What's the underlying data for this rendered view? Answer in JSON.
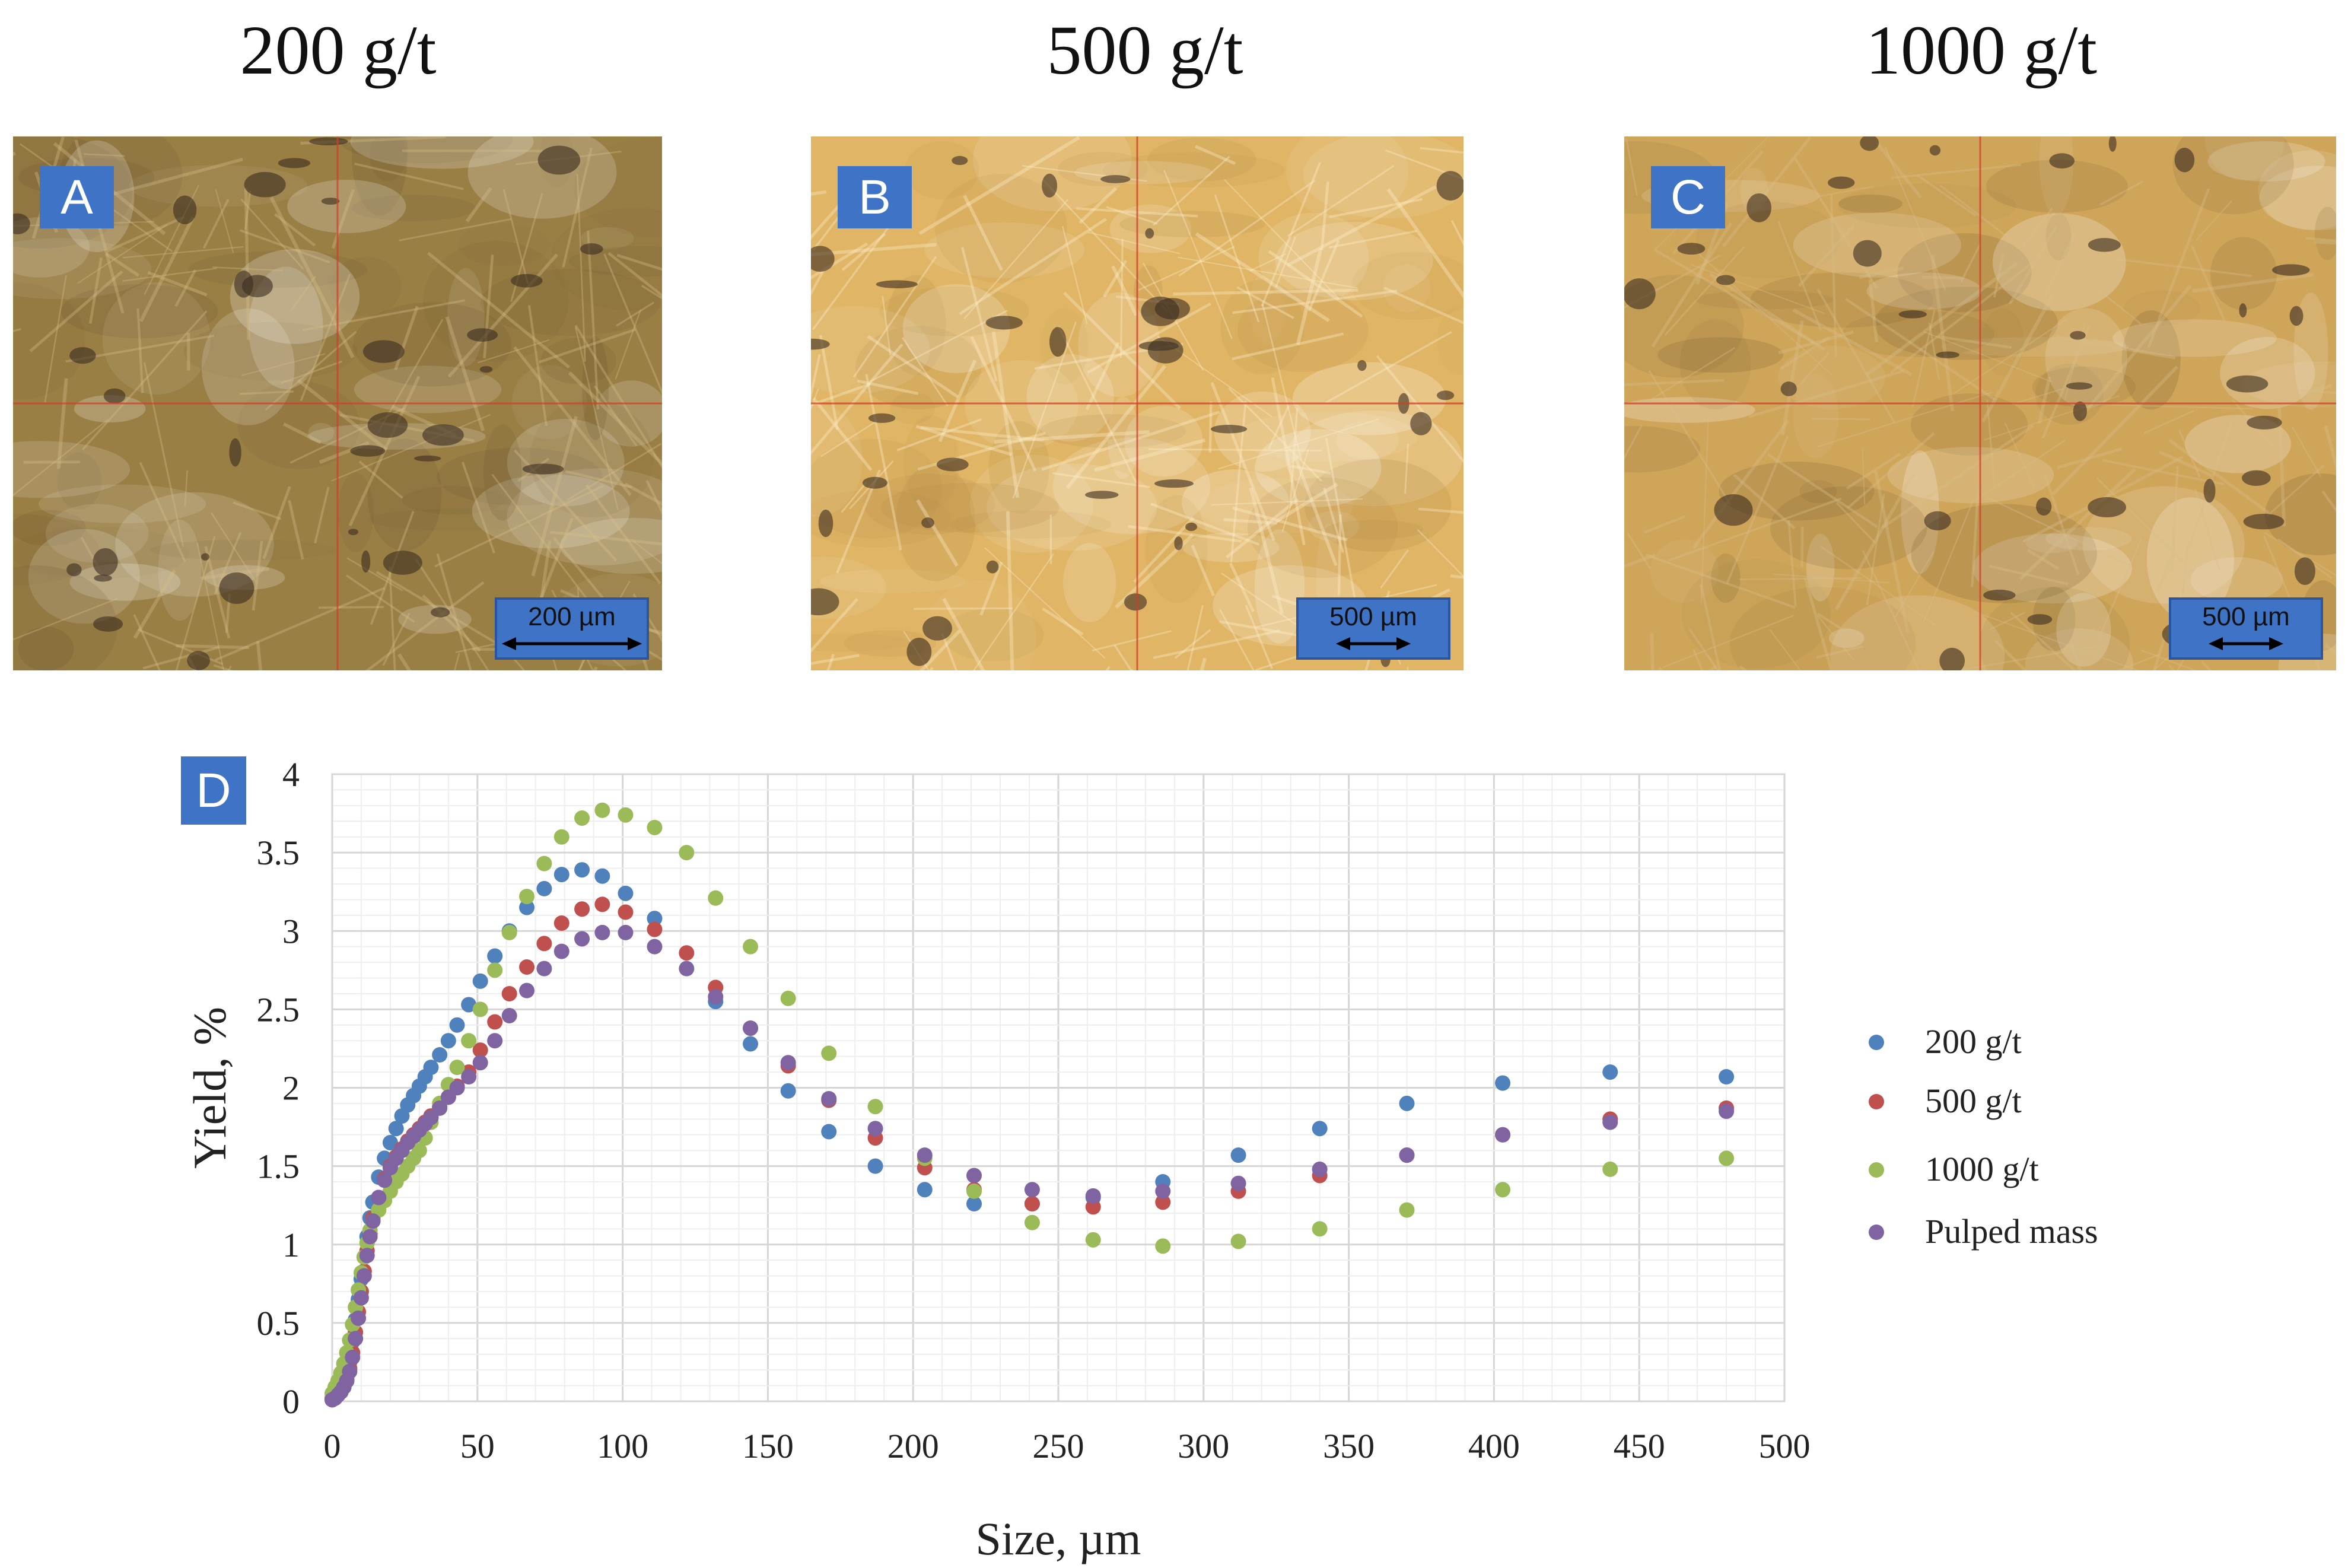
{
  "panels": [
    {
      "heading": "200 g/t",
      "label": "A",
      "scale": "200 µm",
      "tone": "#9a7f45",
      "tone2": "#6b5530"
    },
    {
      "heading": "500 g/t",
      "label": "B",
      "scale": "500 µm",
      "tone": "#e0b565",
      "tone2": "#b08a45"
    },
    {
      "heading": "1000 g/t",
      "label": "C",
      "scale": "500 µm",
      "tone": "#cfa55a",
      "tone2": "#7a6030"
    }
  ],
  "chart_label": "D",
  "chart_data": {
    "type": "scatter",
    "xlabel": "Size, µm",
    "ylabel": "Yield, %",
    "xlim": [
      0,
      500
    ],
    "ylim": [
      0,
      4
    ],
    "xticks": [
      0,
      50,
      100,
      150,
      200,
      250,
      300,
      350,
      400,
      450,
      500
    ],
    "yticks": [
      0,
      0.5,
      1,
      1.5,
      2,
      2.5,
      3,
      3.5,
      4
    ],
    "ytick_labels": [
      "0",
      "0.5",
      "1",
      "1.5",
      "2",
      "2.5",
      "3",
      "3.5",
      "4"
    ],
    "grid": true,
    "legend_position": "right",
    "series": [
      {
        "name": "200 g/t",
        "color": "#4f81bd",
        "x": [
          0,
          1,
          2,
          3,
          4,
          5,
          6,
          7,
          8,
          9,
          10,
          11,
          12,
          13,
          14,
          16,
          18,
          20,
          22,
          24,
          26,
          28,
          30,
          32,
          34,
          37,
          40,
          43,
          47,
          51,
          56,
          61,
          67,
          73,
          79,
          86,
          93,
          101,
          111,
          132,
          144,
          157,
          171,
          187,
          204,
          221,
          241,
          262,
          286,
          312,
          340,
          370,
          403,
          440,
          480
        ],
        "y": [
          0.02,
          0.04,
          0.06,
          0.08,
          0.12,
          0.17,
          0.25,
          0.38,
          0.52,
          0.65,
          0.78,
          0.92,
          1.05,
          1.17,
          1.27,
          1.43,
          1.55,
          1.65,
          1.74,
          1.82,
          1.89,
          1.95,
          2.01,
          2.07,
          2.13,
          2.21,
          2.3,
          2.4,
          2.53,
          2.68,
          2.84,
          3.0,
          3.15,
          3.27,
          3.36,
          3.39,
          3.35,
          3.24,
          3.08,
          2.55,
          2.28,
          1.98,
          1.72,
          1.5,
          1.35,
          1.26,
          1.26,
          1.3,
          1.4,
          1.57,
          1.74,
          1.9,
          2.03,
          2.1,
          2.07
        ]
      },
      {
        "name": "500 g/t",
        "color": "#c0504d",
        "x": [
          0,
          1,
          2,
          3,
          4,
          5,
          6,
          7,
          8,
          9,
          10,
          11,
          12,
          13,
          14,
          16,
          18,
          20,
          22,
          24,
          26,
          28,
          30,
          32,
          34,
          37,
          40,
          43,
          47,
          51,
          56,
          61,
          67,
          73,
          79,
          86,
          93,
          101,
          111,
          122,
          132,
          144,
          157,
          171,
          187,
          204,
          221,
          241,
          262,
          286,
          312,
          340,
          370,
          403,
          440,
          480
        ],
        "y": [
          0.01,
          0.03,
          0.05,
          0.07,
          0.1,
          0.14,
          0.21,
          0.31,
          0.44,
          0.57,
          0.7,
          0.83,
          0.96,
          1.07,
          1.17,
          1.3,
          1.42,
          1.5,
          1.56,
          1.61,
          1.66,
          1.7,
          1.74,
          1.78,
          1.82,
          1.88,
          1.94,
          2.01,
          2.1,
          2.24,
          2.42,
          2.6,
          2.77,
          2.92,
          3.05,
          3.14,
          3.17,
          3.12,
          3.01,
          2.86,
          2.64,
          2.38,
          2.14,
          1.92,
          1.68,
          1.49,
          1.35,
          1.26,
          1.24,
          1.27,
          1.34,
          1.44,
          1.57,
          1.7,
          1.8,
          1.87
        ]
      },
      {
        "name": "1000 g/t",
        "color": "#9bbb59",
        "x": [
          0,
          1,
          2,
          3,
          4,
          5,
          6,
          7,
          8,
          9,
          10,
          11,
          12,
          13,
          14,
          16,
          18,
          20,
          22,
          24,
          26,
          28,
          30,
          32,
          34,
          37,
          40,
          43,
          47,
          51,
          56,
          61,
          67,
          73,
          79,
          86,
          93,
          101,
          111,
          122,
          132,
          144,
          157,
          171,
          187,
          204,
          221,
          241,
          262,
          286,
          312,
          340,
          370,
          403,
          440,
          480
        ],
        "y": [
          0.05,
          0.09,
          0.13,
          0.18,
          0.24,
          0.31,
          0.39,
          0.49,
          0.6,
          0.71,
          0.82,
          0.92,
          1.01,
          1.09,
          1.15,
          1.22,
          1.28,
          1.34,
          1.4,
          1.45,
          1.5,
          1.55,
          1.6,
          1.68,
          1.78,
          1.9,
          2.02,
          2.13,
          2.3,
          2.5,
          2.75,
          2.99,
          3.22,
          3.43,
          3.6,
          3.72,
          3.77,
          3.74,
          3.66,
          3.5,
          3.21,
          2.9,
          2.57,
          2.22,
          1.88,
          1.55,
          1.34,
          1.14,
          1.03,
          0.99,
          1.02,
          1.1,
          1.22,
          1.35,
          1.48,
          1.55
        ]
      },
      {
        "name": "Pulped mass",
        "color": "#8064a2",
        "x": [
          0,
          1,
          2,
          3,
          4,
          5,
          6,
          7,
          8,
          9,
          10,
          11,
          12,
          13,
          14,
          16,
          18,
          20,
          22,
          24,
          26,
          28,
          30,
          32,
          34,
          37,
          40,
          43,
          47,
          51,
          56,
          61,
          67,
          73,
          79,
          86,
          93,
          101,
          111,
          122,
          132,
          144,
          157,
          171,
          187,
          204,
          221,
          241,
          262,
          286,
          312,
          340,
          370,
          403,
          440,
          480
        ],
        "y": [
          0.01,
          0.02,
          0.04,
          0.06,
          0.09,
          0.13,
          0.19,
          0.28,
          0.4,
          0.53,
          0.66,
          0.8,
          0.93,
          1.05,
          1.15,
          1.3,
          1.41,
          1.49,
          1.55,
          1.6,
          1.65,
          1.69,
          1.73,
          1.77,
          1.81,
          1.87,
          1.94,
          2.0,
          2.07,
          2.16,
          2.3,
          2.46,
          2.62,
          2.76,
          2.87,
          2.95,
          2.99,
          2.99,
          2.9,
          2.76,
          2.58,
          2.38,
          2.16,
          1.93,
          1.74,
          1.57,
          1.44,
          1.35,
          1.31,
          1.34,
          1.39,
          1.48,
          1.57,
          1.7,
          1.78,
          1.85
        ]
      }
    ]
  }
}
